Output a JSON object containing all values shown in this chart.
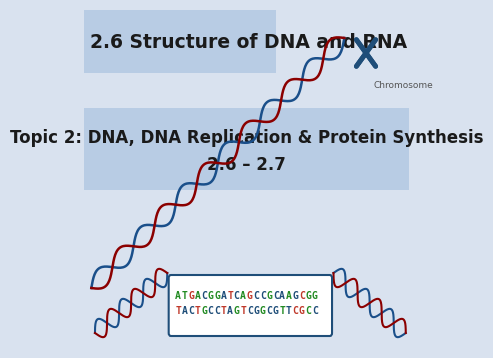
{
  "title": "2.6 Structure of DNA and RNA",
  "subtitle_line1": "Topic 2: DNA, DNA Replication & Protein Synthesis",
  "subtitle_line2": "2.6 – 2.7",
  "chromosome_label": "Chromosome",
  "dna_seq_top": "ATGACGGATCAGCCGCAAGCGG",
  "dna_seq_bot": "TACTGCCTAGTCGGCGTTCGCC",
  "bg_color": "#d9e2ef",
  "title_bg": "#b8cce4",
  "subtitle_bg": "#b8cce4",
  "title_color": "#1a1a1a",
  "subtitle_color": "#1a1a1a",
  "dna_blue": "#1f4e79",
  "chrom_blue": "#1f4e79",
  "seq_colors_top": [
    "#228B22",
    "#228B22",
    "#c0392b",
    "#228B22",
    "#1f4e79",
    "#228B22",
    "#228B22",
    "#1f4e79",
    "#c0392b",
    "#1f4e79",
    "#228B22",
    "#c0392b",
    "#1f4e79",
    "#1f4e79",
    "#228B22",
    "#1f4e79",
    "#1f4e79",
    "#228B22",
    "#1f4e79",
    "#c0392b",
    "#228B22",
    "#228B22"
  ],
  "seq_colors_bot": [
    "#c0392b",
    "#1f4e79",
    "#1f4e79",
    "#c0392b",
    "#228B22",
    "#1f4e79",
    "#1f4e79",
    "#c0392b",
    "#1f4e79",
    "#228B22",
    "#c0392b",
    "#1f4e79",
    "#1f4e79",
    "#228B22",
    "#1f4e79",
    "#1f4e79",
    "#228B22",
    "#1f4e79",
    "#c0392b",
    "#c0392b",
    "#228B22",
    "#1f4e79"
  ]
}
